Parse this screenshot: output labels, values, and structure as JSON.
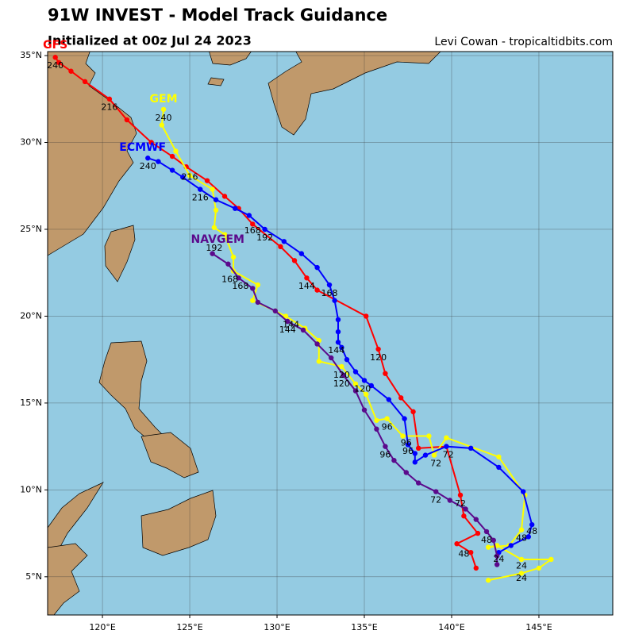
{
  "chart_data": {
    "type": "line",
    "title": "91W INVEST - Model Track Guidance",
    "subtitle": "Initialized at 00z Jul 24 2023",
    "credit": "Levi Cowan - tropicaltidbits.com",
    "xlim": [
      116.86,
      149.23
    ],
    "ylim": [
      2.8,
      35.23
    ],
    "xticks": [
      {
        "value": 120,
        "label": "120°E"
      },
      {
        "value": 125,
        "label": "125°E"
      },
      {
        "value": 130,
        "label": "130°E"
      },
      {
        "value": 135,
        "label": "135°E"
      },
      {
        "value": 140,
        "label": "140°E"
      },
      {
        "value": 145,
        "label": "145°E"
      }
    ],
    "yticks": [
      {
        "value": 5,
        "label": "5°N"
      },
      {
        "value": 10,
        "label": "10°N"
      },
      {
        "value": 15,
        "label": "15°N"
      },
      {
        "value": 20,
        "label": "20°N"
      },
      {
        "value": 25,
        "label": "25°N"
      },
      {
        "value": 30,
        "label": "30°N"
      },
      {
        "value": 35,
        "label": "35°N"
      }
    ],
    "grid": true,
    "series": [
      {
        "name": "GFS",
        "color": "#ff0000",
        "label_lon": 117.3,
        "label_lat": 35.6,
        "x": [
          141.4,
          141.1,
          140.3,
          141.5,
          140.7,
          140.5,
          139.7,
          138.1,
          137.8,
          137.1,
          136.2,
          135.8,
          135.1,
          132.3,
          131.7,
          131.0,
          130.2,
          128.6,
          127.8,
          127.0,
          126.0,
          124.8,
          124.0,
          122.8,
          121.4,
          120.4,
          119.0,
          118.2,
          117.5,
          117.3
        ],
        "values": [
          5.5,
          6.4,
          6.9,
          7.5,
          8.5,
          9.7,
          12.5,
          12.4,
          14.5,
          15.3,
          16.7,
          18.1,
          20.0,
          21.5,
          22.2,
          23.2,
          24.0,
          25.3,
          26.2,
          26.9,
          27.8,
          28.6,
          29.2,
          30.0,
          31.3,
          32.5,
          33.5,
          34.1,
          34.6,
          34.9
        ]
      },
      {
        "name": "GEM",
        "color": "#ffff00",
        "label_lon": 123.5,
        "label_lat": 32.5,
        "x": [
          142.1,
          144.0,
          145.0,
          145.7,
          144.0,
          142.6,
          142.1,
          143.3,
          144.0,
          144.2,
          142.7,
          139.7,
          139.0,
          138.7,
          137.2,
          136.3,
          135.7,
          135.1,
          134.5,
          133.7,
          132.4,
          132.4,
          131.6,
          130.5,
          129.9,
          128.6,
          128.9,
          127.5,
          127.5,
          127.0,
          126.4,
          126.5,
          126.3,
          125.0,
          124.2,
          123.4,
          123.5
        ],
        "values": [
          4.8,
          5.2,
          5.5,
          6.0,
          6.0,
          6.8,
          6.7,
          6.8,
          7.7,
          9.7,
          11.9,
          13.0,
          12.0,
          13.1,
          13.1,
          14.1,
          14.0,
          15.5,
          16.1,
          17.1,
          17.4,
          18.6,
          19.3,
          20.0,
          20.3,
          20.9,
          21.8,
          22.6,
          23.4,
          24.7,
          25.1,
          26.1,
          27.3,
          28.1,
          29.5,
          31.0,
          31.9
        ]
      },
      {
        "name": "ECMWF",
        "color": "#0000ff",
        "label_lon": 122.3,
        "label_lat": 29.7,
        "x": [
          142.7,
          143.4,
          144.4,
          144.6,
          144.1,
          142.7,
          141.1,
          139.7,
          138.5,
          137.9,
          137.9,
          137.5,
          137.3,
          136.4,
          135.4,
          135.0,
          134.5,
          134.0,
          133.7,
          133.5,
          133.5,
          133.5,
          133.3,
          133.0,
          132.3,
          131.4,
          130.4,
          129.3,
          128.4,
          127.6,
          126.5,
          125.6,
          124.6,
          124.0,
          123.2,
          122.6
        ],
        "values": [
          6.4,
          6.8,
          7.3,
          8.0,
          9.9,
          11.3,
          12.4,
          12.5,
          12.0,
          11.6,
          12.1,
          12.6,
          14.1,
          15.2,
          16.0,
          16.3,
          16.8,
          17.5,
          18.2,
          18.5,
          19.1,
          19.8,
          20.9,
          21.8,
          22.8,
          23.6,
          24.3,
          25.0,
          25.8,
          26.2,
          26.7,
          27.3,
          28.0,
          28.4,
          28.9,
          29.1
        ]
      },
      {
        "name": "NAVGEM",
        "color": "#5b0a8c",
        "label_lon": 126.6,
        "label_lat": 24.4,
        "x": [
          142.6,
          142.6,
          142.4,
          142.0,
          141.4,
          140.8,
          139.9,
          139.1,
          138.1,
          137.4,
          136.7,
          136.2,
          135.7,
          135.0,
          134.5,
          133.8,
          133.1,
          132.3,
          131.5,
          130.6,
          129.9,
          128.9,
          128.6,
          127.8,
          127.2,
          126.3
        ],
        "values": [
          5.7,
          6.2,
          7.1,
          7.6,
          8.3,
          8.9,
          9.4,
          9.9,
          10.4,
          11.0,
          11.7,
          12.5,
          13.5,
          14.6,
          15.7,
          16.6,
          17.6,
          18.4,
          19.2,
          19.7,
          20.3,
          20.8,
          21.6,
          22.2,
          23.0,
          23.6
        ]
      }
    ],
    "hour_labels": [
      {
        "text": "240",
        "lon": 117.3,
        "lat": 34.4
      },
      {
        "text": "216",
        "lon": 120.4,
        "lat": 32.0
      },
      {
        "text": "240",
        "lon": 123.5,
        "lat": 31.4
      },
      {
        "text": "216",
        "lon": 125.0,
        "lat": 28.0
      },
      {
        "text": "240",
        "lon": 122.6,
        "lat": 28.6
      },
      {
        "text": "216",
        "lon": 125.6,
        "lat": 26.8
      },
      {
        "text": "168",
        "lon": 128.6,
        "lat": 24.9
      },
      {
        "text": "192",
        "lon": 129.3,
        "lat": 24.5
      },
      {
        "text": "192",
        "lon": 126.4,
        "lat": 23.9
      },
      {
        "text": "144",
        "lon": 131.7,
        "lat": 21.7
      },
      {
        "text": "168",
        "lon": 133.0,
        "lat": 21.3
      },
      {
        "text": "168",
        "lon": 127.3,
        "lat": 22.1
      },
      {
        "text": "168",
        "lon": 127.9,
        "lat": 21.7
      },
      {
        "text": "144",
        "lon": 130.8,
        "lat": 19.5
      },
      {
        "text": "144",
        "lon": 130.6,
        "lat": 19.2
      },
      {
        "text": "144",
        "lon": 133.4,
        "lat": 18.0
      },
      {
        "text": "120",
        "lon": 135.8,
        "lat": 17.6
      },
      {
        "text": "120",
        "lon": 133.7,
        "lat": 16.6
      },
      {
        "text": "120",
        "lon": 133.7,
        "lat": 16.1
      },
      {
        "text": "120",
        "lon": 134.9,
        "lat": 15.8
      },
      {
        "text": "96",
        "lon": 136.3,
        "lat": 13.6
      },
      {
        "text": "96",
        "lon": 137.4,
        "lat": 12.7
      },
      {
        "text": "96",
        "lon": 137.5,
        "lat": 12.2
      },
      {
        "text": "96",
        "lon": 136.2,
        "lat": 12.0
      },
      {
        "text": "72",
        "lon": 139.8,
        "lat": 12.0
      },
      {
        "text": "72",
        "lon": 139.1,
        "lat": 11.5
      },
      {
        "text": "72",
        "lon": 140.5,
        "lat": 9.2
      },
      {
        "text": "72",
        "lon": 139.1,
        "lat": 9.4
      },
      {
        "text": "48",
        "lon": 142.0,
        "lat": 7.1
      },
      {
        "text": "48",
        "lon": 144.0,
        "lat": 7.2
      },
      {
        "text": "48",
        "lon": 144.6,
        "lat": 7.6
      },
      {
        "text": "48",
        "lon": 140.7,
        "lat": 6.3
      },
      {
        "text": "24",
        "lon": 142.7,
        "lat": 6.0
      },
      {
        "text": "24",
        "lon": 144.0,
        "lat": 5.6
      },
      {
        "text": "24",
        "lon": 144.0,
        "lat": 4.9
      }
    ]
  }
}
